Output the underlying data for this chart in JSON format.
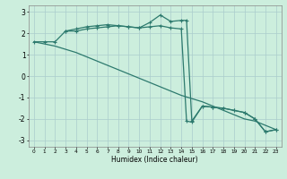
{
  "xlabel": "Humidex (Indice chaleur)",
  "background_color": "#cceedd",
  "grid_color": "#aacccc",
  "line_color": "#2d7a6e",
  "xlim": [
    -0.5,
    23.5
  ],
  "ylim": [
    -3.3,
    3.3
  ],
  "xticks": [
    0,
    1,
    2,
    3,
    4,
    5,
    6,
    7,
    8,
    9,
    10,
    11,
    12,
    13,
    14,
    15,
    16,
    17,
    18,
    19,
    20,
    21,
    22,
    23
  ],
  "yticks": [
    -3,
    -2,
    -1,
    0,
    1,
    2,
    3
  ],
  "line1_x": [
    0,
    1,
    2,
    3,
    4,
    5,
    6,
    7,
    8,
    9,
    10,
    11,
    12,
    13,
    14,
    14.5,
    15,
    16,
    17,
    18,
    19,
    20,
    21,
    22,
    23
  ],
  "line1_y": [
    1.6,
    1.6,
    1.6,
    2.1,
    2.2,
    2.3,
    2.35,
    2.4,
    2.35,
    2.3,
    2.25,
    2.3,
    2.35,
    2.25,
    2.2,
    -2.1,
    -2.15,
    -1.4,
    -1.45,
    -1.5,
    -1.6,
    -1.7,
    -2.0,
    -2.6,
    -2.5
  ],
  "line2_x": [
    0,
    1,
    2,
    3,
    4,
    5,
    6,
    7,
    8,
    9,
    10,
    11,
    12,
    13,
    14,
    15,
    16,
    17,
    18,
    19,
    20,
    21,
    22,
    23
  ],
  "line2_y": [
    1.6,
    1.5,
    1.4,
    1.25,
    1.1,
    0.9,
    0.7,
    0.5,
    0.3,
    0.1,
    -0.1,
    -0.3,
    -0.5,
    -0.7,
    -0.9,
    -1.05,
    -1.2,
    -1.4,
    -1.6,
    -1.8,
    -2.0,
    -2.1,
    -2.3,
    -2.5
  ],
  "line3_x": [
    3,
    4,
    5,
    6,
    7,
    8,
    9,
    10,
    11,
    12,
    13,
    14,
    14.5,
    15,
    16,
    17,
    18,
    19,
    20,
    21,
    22,
    23
  ],
  "line3_y": [
    2.1,
    2.1,
    2.2,
    2.25,
    2.3,
    2.35,
    2.3,
    2.25,
    2.5,
    2.85,
    2.55,
    2.6,
    2.6,
    -2.1,
    -1.4,
    -1.45,
    -1.5,
    -1.6,
    -1.7,
    -2.0,
    -2.6,
    -2.5
  ]
}
